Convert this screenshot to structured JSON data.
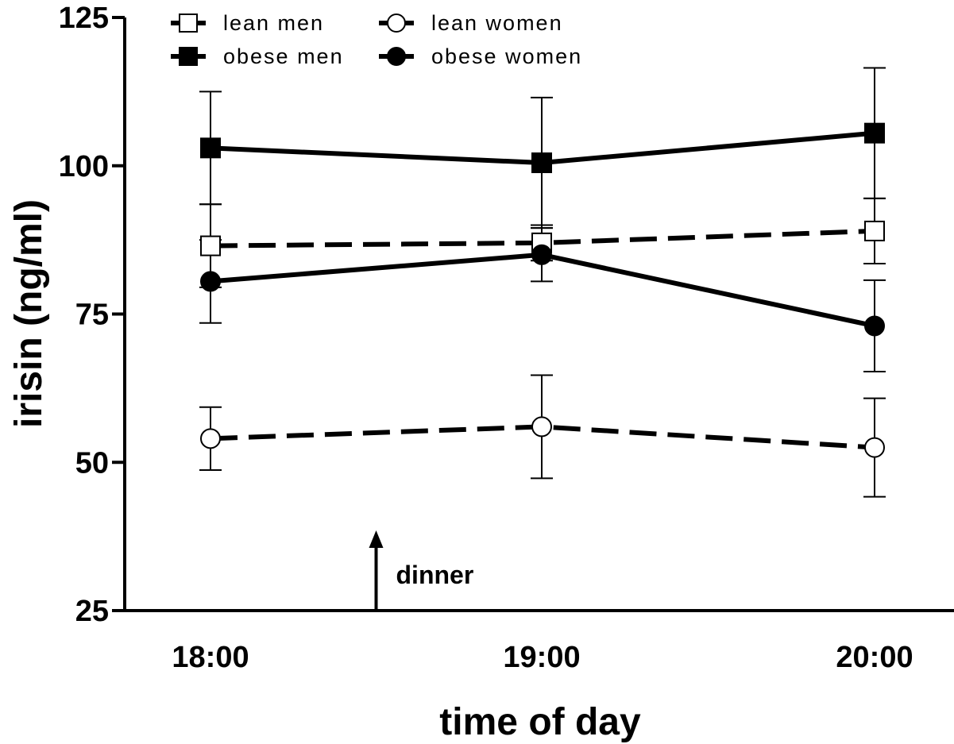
{
  "chart_data": {
    "type": "line",
    "xlabel": "time of day",
    "ylabel": "irisin (ng/ml)",
    "ylim": [
      25,
      125
    ],
    "yticks": [
      25,
      50,
      75,
      100,
      125
    ],
    "categories": [
      "18:00",
      "19:00",
      "20:00"
    ],
    "grid": false,
    "legend_position": "top-left",
    "series": [
      {
        "name": "lean men",
        "marker": "square",
        "filled": false,
        "line": "dashed",
        "values": [
          86.5,
          87,
          89
        ],
        "errors": [
          7,
          3,
          5.5
        ]
      },
      {
        "name": "obese men",
        "marker": "square",
        "filled": true,
        "line": "solid",
        "values": [
          103,
          100.5,
          105.5
        ],
        "errors": [
          9.5,
          11,
          11
        ]
      },
      {
        "name": "lean women",
        "marker": "circle",
        "filled": false,
        "line": "dashed",
        "values": [
          54,
          56,
          52.5
        ],
        "errors": [
          5.3,
          8.7,
          8.3
        ]
      },
      {
        "name": "obese women",
        "marker": "circle",
        "filled": true,
        "line": "solid",
        "values": [
          80.5,
          85,
          73
        ],
        "errors": [
          7,
          4.5,
          7.7
        ]
      }
    ],
    "annotations": [
      {
        "text": "dinner",
        "x": 18.5
      }
    ]
  }
}
